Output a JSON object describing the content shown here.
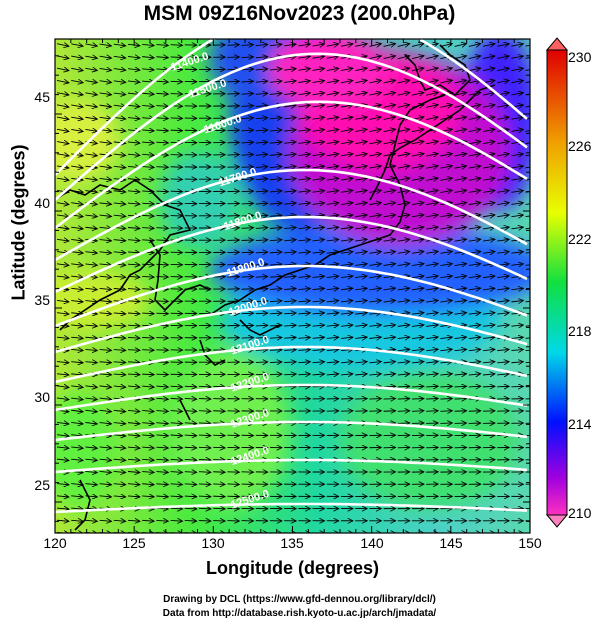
{
  "title": "MSM 09Z16Nov2023 (200.0hPa)",
  "xlabel": "Longitude (degrees)",
  "ylabel": "Latitude  (degrees)",
  "x_ticks": [
    "120",
    "125",
    "130",
    "135",
    "140",
    "145",
    "150"
  ],
  "y_ticks": [
    "25",
    "30",
    "35",
    "40",
    "45"
  ],
  "colorbar": {
    "ticks": [
      "230",
      "226",
      "222",
      "218",
      "214",
      "210"
    ],
    "range": [
      210,
      230
    ]
  },
  "contour_labels": [
    "11400.0",
    "11500.0",
    "11600.0",
    "11700.0",
    "11800.0",
    "11900.0",
    "12000.0",
    "12100.0",
    "12200.0",
    "12300.0",
    "12400.0",
    "12500.0"
  ],
  "footer": {
    "line1": "Drawing by DCL (https://www.gfd-dennou.org/library/dcl/)",
    "line2": "Data from http://database.rish.kyoto-u.ac.jp/arch/jmadata/"
  },
  "colors": {
    "warm": "#ffd400",
    "mid": "#00e000",
    "cool": "#0000ff",
    "cold": "#ff00ff",
    "contour": "#ffffff",
    "wind": "#000000"
  }
}
